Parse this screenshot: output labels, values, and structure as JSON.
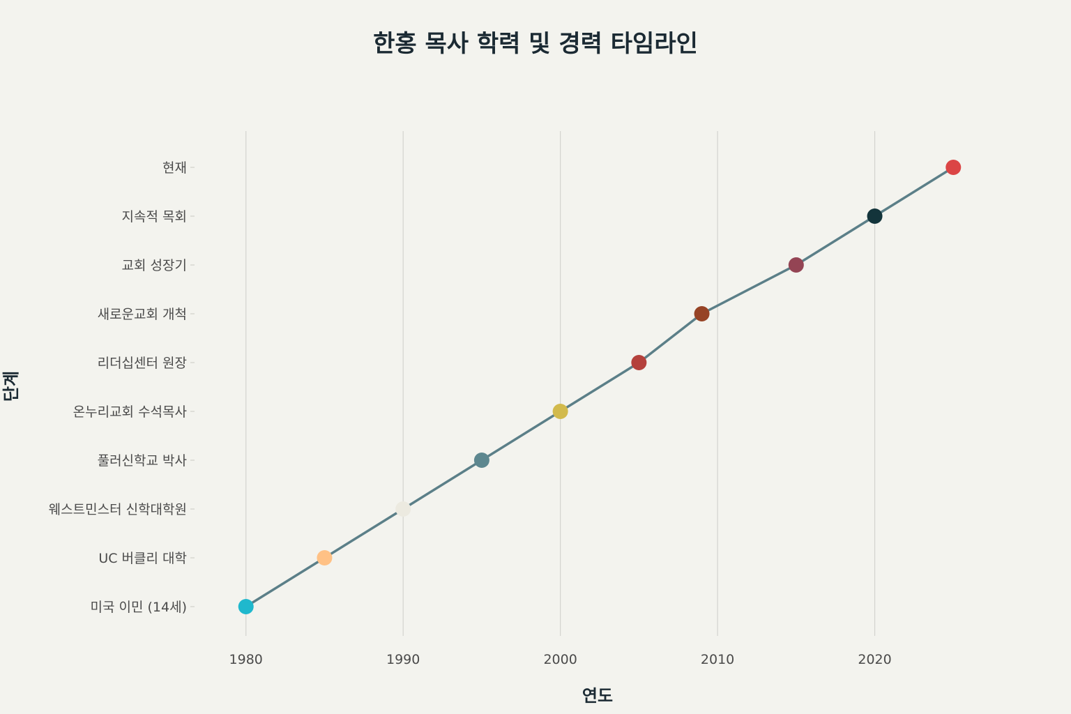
{
  "chart_data": {
    "type": "line",
    "title": "한홍 목사 학력 및 경력 타임라인",
    "xlabel": "연도",
    "ylabel": "단계",
    "xlim": [
      1975,
      2030
    ],
    "xticks": [
      1980,
      1990,
      2000,
      2010,
      2020
    ],
    "grid": "vertical",
    "line_color": "#5b7f88",
    "categories": [
      "미국 이민 (14세)",
      "UC 버클리 대학",
      "웨스트민스터 신학대학원",
      "풀러신학교 박사",
      "온누리교회 수석목사",
      "리더십센터 원장",
      "새로운교회 개척",
      "교회 성장기",
      "지속적 목회",
      "현재"
    ],
    "points": [
      {
        "x": 1980,
        "y": "미국 이민 (14세)",
        "color": "#1fb8cd"
      },
      {
        "x": 1985,
        "y": "UC 버클리 대학",
        "color": "#ffc185"
      },
      {
        "x": 1990,
        "y": "웨스트민스터 신학대학원",
        "color": "#eceae0"
      },
      {
        "x": 1995,
        "y": "풀러신학교 박사",
        "color": "#5d878f"
      },
      {
        "x": 2000,
        "y": "온누리교회 수석목사",
        "color": "#d2ba4c"
      },
      {
        "x": 2005,
        "y": "리더십센터 원장",
        "color": "#b4413c"
      },
      {
        "x": 2009,
        "y": "새로운교회 개척",
        "color": "#964325"
      },
      {
        "x": 2015,
        "y": "교회 성장기",
        "color": "#944454"
      },
      {
        "x": 2020,
        "y": "지속적 목회",
        "color": "#13343b"
      },
      {
        "x": 2025,
        "y": "현재",
        "color": "#db4545"
      }
    ]
  }
}
